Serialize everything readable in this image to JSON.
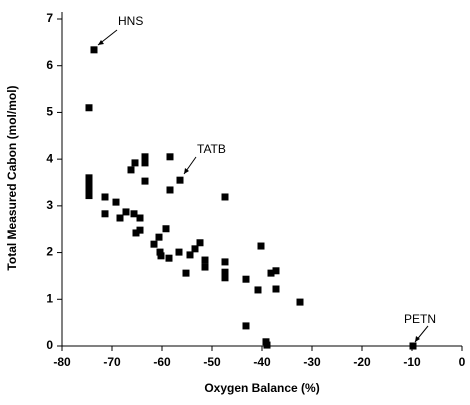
{
  "chart_data": {
    "type": "scatter",
    "x_label": "Oxygen Balance (%)",
    "y_label": "Total Measured Cabon (mol/mol)",
    "annotations": [
      "HNS",
      "TATB",
      "PETN"
    ],
    "series": [
      {
        "color": "#000000",
        "x": [
          -73.6,
          -74.6,
          -74.6,
          -74.6,
          -74.6,
          -74.6,
          -74.6,
          -71.4,
          -71.4,
          -69.2,
          -68.4,
          -67.2,
          -66.2,
          -65.4,
          -65.6,
          -65.2,
          -64.4,
          -64.4,
          -63.4,
          -63.4,
          -63.4,
          -61.6,
          -60.6,
          -60.4,
          -60.2,
          -59.2,
          -58.6,
          -58.4,
          -58.4,
          -56.6,
          -56.4,
          -55.2,
          -54.4,
          -53.4,
          -52.4,
          -51.4,
          -51.4,
          -47.4,
          -47.4,
          -47.4,
          -47.4,
          -43.2,
          -43.2,
          -40.8,
          -40.2,
          -39.2,
          -39.0,
          -38.2,
          -37.2,
          -37.2,
          -32.4,
          -9.8
        ],
        "y": [
          6.34,
          5.1,
          3.6,
          3.5,
          3.4,
          3.3,
          3.22,
          3.19,
          2.83,
          3.08,
          2.74,
          2.87,
          3.77,
          3.92,
          2.83,
          2.42,
          2.48,
          2.74,
          4.05,
          3.92,
          3.53,
          2.18,
          2.33,
          2.01,
          1.93,
          2.51,
          1.88,
          4.05,
          3.34,
          2.01,
          3.55,
          1.56,
          1.95,
          2.08,
          2.21,
          1.84,
          1.69,
          3.19,
          1.8,
          1.58,
          1.46,
          1.43,
          0.43,
          1.2,
          2.14,
          0.09,
          0.02,
          1.56,
          1.61,
          1.22,
          0.94,
          0.0
        ]
      }
    ],
    "xlim": [
      -80,
      0
    ],
    "ylim": [
      0,
      7
    ],
    "xticks": [
      -80,
      -70,
      -60,
      -50,
      -40,
      -30,
      -20,
      -10,
      0
    ],
    "yticks": [
      0,
      1,
      2,
      3,
      4,
      5,
      6,
      7
    ]
  }
}
